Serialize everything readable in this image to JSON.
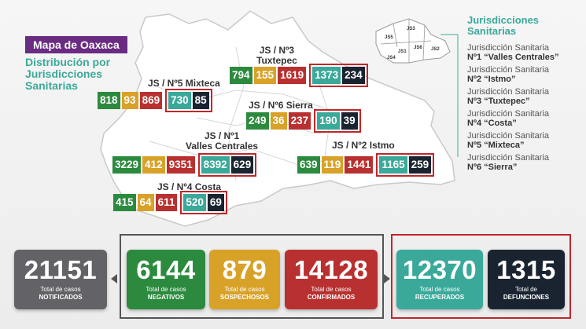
{
  "header": {
    "title": "Mapa de Oaxaca",
    "subtitle_lines": [
      "Distribución por",
      "Jurisdicciones",
      "Sanitarias"
    ]
  },
  "legend": {
    "title_lines": [
      "Jurisdicciones",
      "Sanitarias"
    ],
    "items": [
      {
        "prefix": "Jurisdicción Sanitaria",
        "name": "Nº1 “Valles Centrales”"
      },
      {
        "prefix": "Jurisdicción Sanitaria",
        "name": "Nº2 “Istmo”"
      },
      {
        "prefix": "Jurisdicción Sanitaria",
        "name": "Nº3 “Tuxtepec”"
      },
      {
        "prefix": "Jurisdicción Sanitaria",
        "name": "Nº4 “Costa”"
      },
      {
        "prefix": "Jurisdicción Sanitaria",
        "name": "Nº5 “Mixteca”"
      },
      {
        "prefix": "Jurisdicción Sanitaria",
        "name": "Nº6 “Sierra”"
      }
    ],
    "mini_map_labels": [
      "JS5",
      "JS3",
      "JS6",
      "JS1",
      "JS2",
      "JS4"
    ]
  },
  "jurisdictions": {
    "js3": {
      "label1": "JS / Nº3",
      "label2": "Tuxtepec",
      "negativos": "794",
      "sospechosos": "155",
      "confirmados": "1619",
      "recuperados": "1373",
      "defunciones": "234"
    },
    "js5": {
      "label1": "JS / Nº5 Mixteca",
      "negativos": "818",
      "sospechosos": "93",
      "confirmados": "869",
      "recuperados": "730",
      "defunciones": "85"
    },
    "js6": {
      "label1": "JS / Nº6 Sierra",
      "negativos": "249",
      "sospechosos": "36",
      "confirmados": "237",
      "recuperados": "190",
      "defunciones": "39"
    },
    "js1": {
      "label1": "JS / Nº1",
      "label2": "Valles Centrales",
      "negativos": "3229",
      "sospechosos": "412",
      "confirmados": "9351",
      "recuperados": "8392",
      "defunciones": "629"
    },
    "js2": {
      "label1": "JS / Nº2 Istmo",
      "negativos": "639",
      "sospechosos": "119",
      "confirmados": "1441",
      "recuperados": "1165",
      "defunciones": "259"
    },
    "js4": {
      "label1": "JS / Nº4 Costa",
      "negativos": "415",
      "sospechosos": "64",
      "confirmados": "611",
      "recuperados": "520",
      "defunciones": "69"
    }
  },
  "totals": {
    "notificados": {
      "value": "21151",
      "label1": "Total de casos",
      "label2": "NOTIFICADOS"
    },
    "negativos": {
      "value": "6144",
      "label1": "Total de casos",
      "label2": "NEGATIVOS"
    },
    "sospechosos": {
      "value": "879",
      "label1": "Total de casos",
      "label2": "SOSPECHOSOS"
    },
    "confirmados": {
      "value": "14128",
      "label1": "Total de casos",
      "label2": "CONFIRMADOS"
    },
    "recuperados": {
      "value": "12370",
      "label1": "Total de casos",
      "label2": "RECUPERADOS"
    },
    "defunciones": {
      "value": "1315",
      "label1": "Total de",
      "label2": "DEFUNCIONES"
    }
  },
  "colors": {
    "negativos": "#2b8a3e",
    "sospechosos": "#d8a228",
    "confirmados": "#b8302f",
    "recuperados": "#3aa99a",
    "defunciones": "#1a2430",
    "notificados": "#636367",
    "accent": "#6a2c82"
  }
}
